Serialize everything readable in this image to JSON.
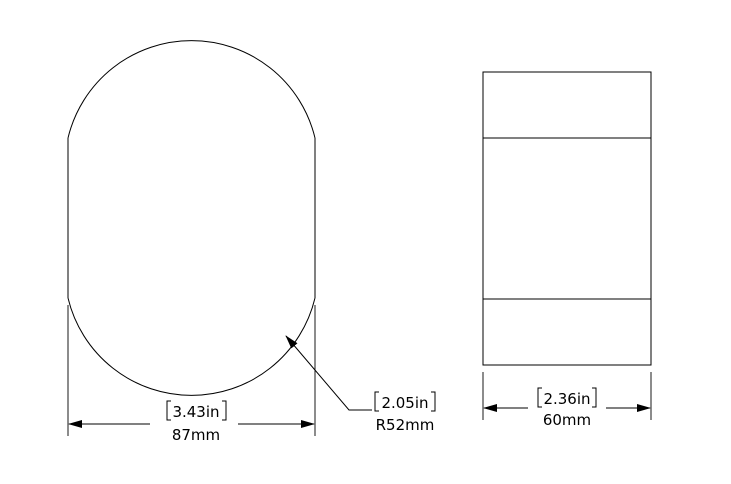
{
  "colors": {
    "line": "#000000",
    "background": "#ffffff"
  },
  "front_view": {
    "width_dimension": {
      "imperial": "3.43in",
      "metric": "87mm"
    },
    "radius_dimension": {
      "imperial": "2.05in",
      "metric": "R52mm"
    }
  },
  "side_view": {
    "width_dimension": {
      "imperial": "2.36in",
      "metric": "60mm"
    }
  }
}
